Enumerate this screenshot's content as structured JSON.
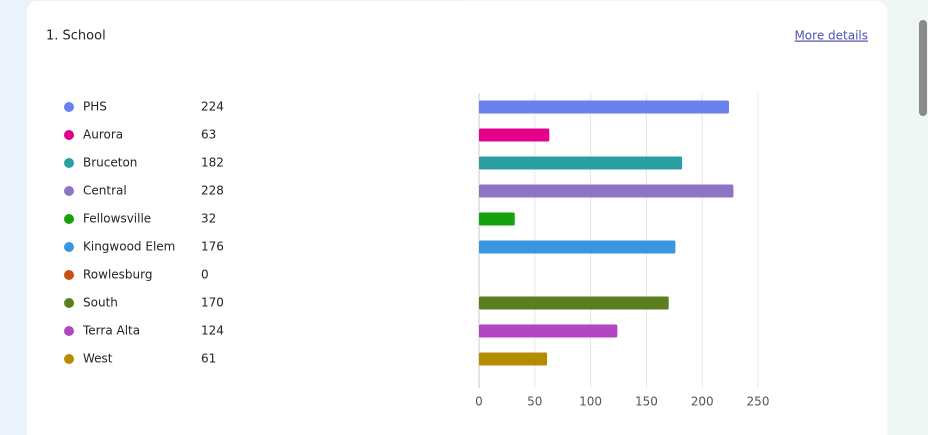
{
  "chart_data": {
    "type": "bar",
    "orientation": "horizontal",
    "title": "1. School",
    "link": "More details",
    "categories": [
      "PHS",
      "Aurora",
      "Bruceton",
      "Central",
      "Fellowsville",
      "Kingwood Elem",
      "Rowlesburg",
      "South",
      "Terra Alta",
      "West"
    ],
    "values": [
      224,
      63,
      182,
      228,
      32,
      176,
      0,
      170,
      124,
      61
    ],
    "colors": [
      "#6a7ff0",
      "#e3008c",
      "#2a9fa4",
      "#8f73c6",
      "#13a10e",
      "#3a96dd",
      "#ca5010",
      "#5b7f1f",
      "#b146c2",
      "#b58b00"
    ],
    "xlim": [
      0,
      250
    ],
    "xticks": [
      0,
      50,
      100,
      150,
      200,
      250
    ],
    "grid": true
  }
}
